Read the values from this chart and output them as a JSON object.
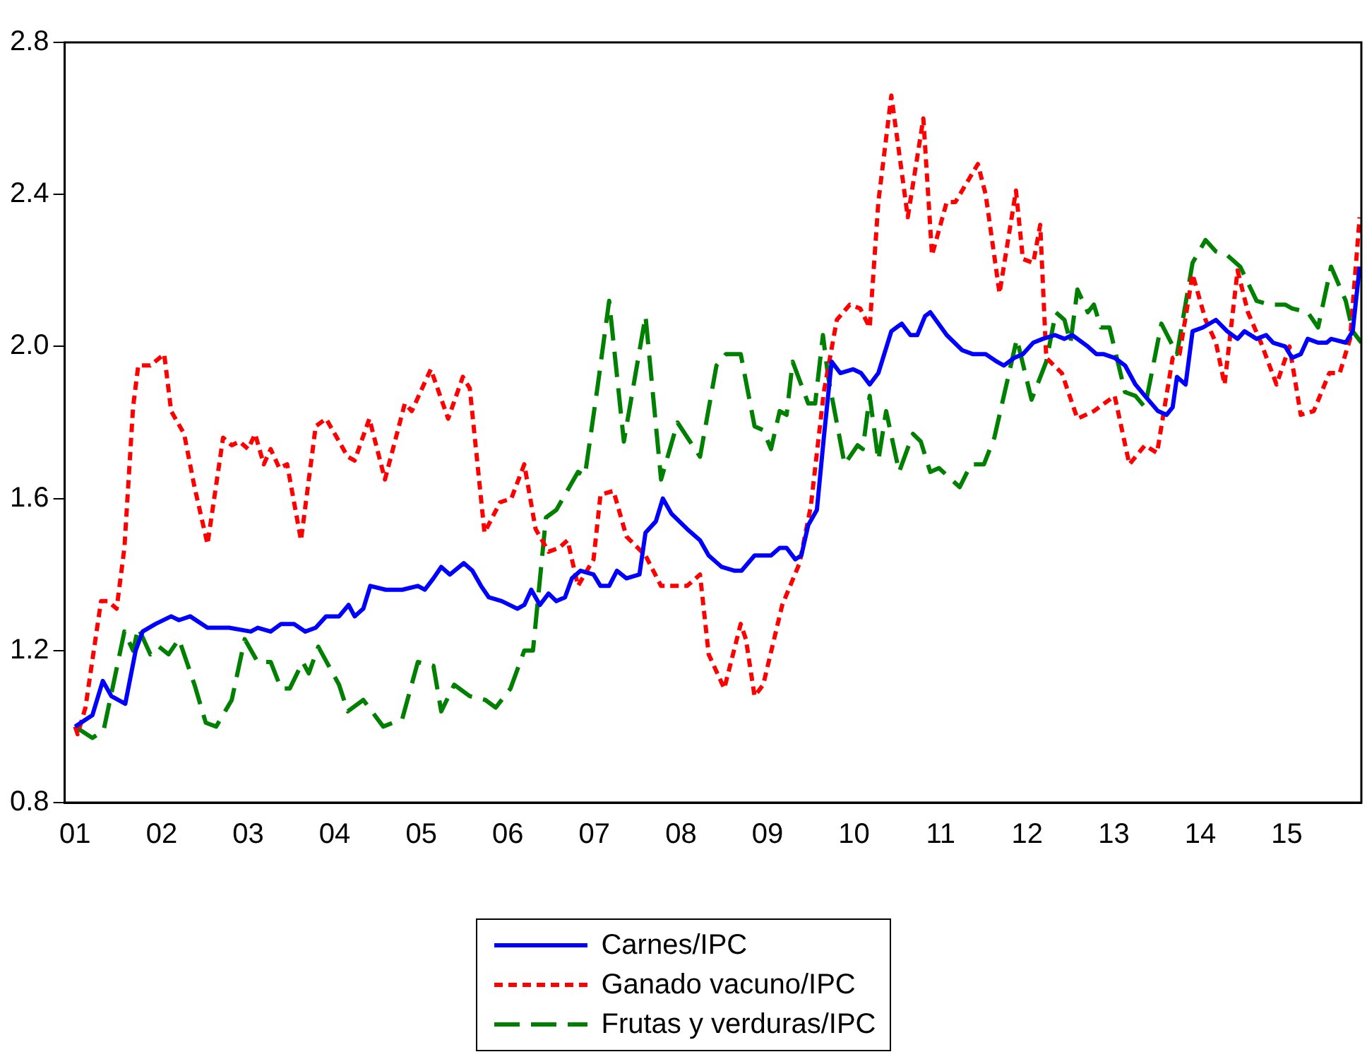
{
  "chart_data": {
    "type": "line",
    "xlim": [
      2000.88,
      2015.86
    ],
    "ylim": [
      0.8,
      2.8
    ],
    "xticks": [
      {
        "value": 2001,
        "label": "01"
      },
      {
        "value": 2002,
        "label": "02"
      },
      {
        "value": 2003,
        "label": "03"
      },
      {
        "value": 2004,
        "label": "04"
      },
      {
        "value": 2005,
        "label": "05"
      },
      {
        "value": 2006,
        "label": "06"
      },
      {
        "value": 2007,
        "label": "07"
      },
      {
        "value": 2008,
        "label": "08"
      },
      {
        "value": 2009,
        "label": "09"
      },
      {
        "value": 2010,
        "label": "10"
      },
      {
        "value": 2011,
        "label": "11"
      },
      {
        "value": 2012,
        "label": "12"
      },
      {
        "value": 2013,
        "label": "13"
      },
      {
        "value": 2014,
        "label": "14"
      },
      {
        "value": 2015,
        "label": "15"
      }
    ],
    "yticks": [
      {
        "value": 0.8,
        "label": "0.8"
      },
      {
        "value": 1.2,
        "label": "1.2"
      },
      {
        "value": 1.6,
        "label": "1.6"
      },
      {
        "value": 2.0,
        "label": "2.0"
      },
      {
        "value": 2.4,
        "label": "2.4"
      },
      {
        "value": 2.8,
        "label": "2.8"
      }
    ],
    "grid": false,
    "legend": "bottom",
    "marker": "none",
    "series": [
      {
        "name": "Carnes/IPC",
        "color": "#0000ff",
        "line_style": "solid",
        "x": [
          2001.0,
          2001.2,
          2001.32,
          2001.42,
          2001.58,
          2001.7,
          2001.78,
          2001.93,
          2002.11,
          2002.2,
          2002.33,
          2002.53,
          2002.78,
          2003.03,
          2003.11,
          2003.26,
          2003.38,
          2003.53,
          2003.66,
          2003.78,
          2003.9,
          2004.05,
          2004.16,
          2004.23,
          2004.33,
          2004.41,
          2004.59,
          2004.78,
          2004.96,
          2005.04,
          2005.14,
          2005.23,
          2005.33,
          2005.49,
          2005.59,
          2005.69,
          2005.78,
          2005.93,
          2006.11,
          2006.19,
          2006.27,
          2006.37,
          2006.47,
          2006.56,
          2006.66,
          2006.74,
          2006.84,
          2006.99,
          2007.07,
          2007.17,
          2007.26,
          2007.37,
          2007.52,
          2007.59,
          2007.71,
          2007.79,
          2007.89,
          2008.07,
          2008.22,
          2008.32,
          2008.47,
          2008.62,
          2008.7,
          2008.85,
          2009.04,
          2009.14,
          2009.22,
          2009.32,
          2009.39,
          2009.47,
          2009.57,
          2009.65,
          2009.74,
          2009.84,
          2009.99,
          2010.08,
          2010.18,
          2010.28,
          2010.43,
          2010.55,
          2010.65,
          2010.73,
          2010.82,
          2010.88,
          2011.07,
          2011.25,
          2011.37,
          2011.52,
          2011.65,
          2011.73,
          2011.85,
          2011.95,
          2012.07,
          2012.18,
          2012.32,
          2012.43,
          2012.52,
          2012.7,
          2012.8,
          2012.88,
          2013.01,
          2013.13,
          2013.25,
          2013.36,
          2013.51,
          2013.61,
          2013.68,
          2013.73,
          2013.83,
          2013.91,
          2014.03,
          2014.18,
          2014.31,
          2014.43,
          2014.51,
          2014.65,
          2014.76,
          2014.84,
          2014.98,
          2015.06,
          2015.16,
          2015.24,
          2015.36,
          2015.46,
          2015.51,
          2015.68,
          2015.76,
          2015.84
        ],
        "values": [
          1.0,
          1.03,
          1.12,
          1.08,
          1.06,
          1.2,
          1.25,
          1.27,
          1.29,
          1.28,
          1.29,
          1.26,
          1.26,
          1.25,
          1.26,
          1.25,
          1.27,
          1.27,
          1.25,
          1.26,
          1.29,
          1.29,
          1.32,
          1.29,
          1.31,
          1.37,
          1.36,
          1.36,
          1.37,
          1.36,
          1.39,
          1.42,
          1.4,
          1.43,
          1.41,
          1.37,
          1.34,
          1.33,
          1.31,
          1.32,
          1.36,
          1.32,
          1.35,
          1.33,
          1.34,
          1.39,
          1.41,
          1.4,
          1.37,
          1.37,
          1.41,
          1.39,
          1.4,
          1.51,
          1.54,
          1.6,
          1.56,
          1.52,
          1.49,
          1.45,
          1.42,
          1.41,
          1.41,
          1.45,
          1.45,
          1.47,
          1.47,
          1.44,
          1.45,
          1.53,
          1.57,
          1.76,
          1.96,
          1.93,
          1.94,
          1.93,
          1.9,
          1.93,
          2.04,
          2.06,
          2.03,
          2.03,
          2.08,
          2.09,
          2.03,
          1.99,
          1.98,
          1.98,
          1.96,
          1.95,
          1.97,
          1.98,
          2.01,
          2.02,
          2.03,
          2.02,
          2.03,
          2.0,
          1.98,
          1.98,
          1.97,
          1.95,
          1.9,
          1.87,
          1.83,
          1.82,
          1.84,
          1.92,
          1.9,
          2.04,
          2.05,
          2.07,
          2.04,
          2.02,
          2.04,
          2.02,
          2.03,
          2.01,
          2.0,
          1.97,
          1.98,
          2.02,
          2.01,
          2.01,
          2.02,
          2.01,
          2.04,
          2.21
        ]
      },
      {
        "name": "Ganado vacuno/IPC",
        "color": "#ff0000",
        "line_style": "dotted",
        "x": [
          2001.0,
          2001.03,
          2001.12,
          2001.3,
          2001.38,
          2001.48,
          2001.57,
          2001.67,
          2001.73,
          2001.87,
          2002.03,
          2002.11,
          2002.26,
          2002.38,
          2002.53,
          2002.71,
          2002.81,
          2002.9,
          2003.0,
          2003.08,
          2003.18,
          2003.26,
          2003.36,
          2003.45,
          2003.61,
          2003.78,
          2003.9,
          2004.05,
          2004.15,
          2004.23,
          2004.4,
          2004.58,
          2004.81,
          2004.89,
          2005.11,
          2005.31,
          2005.48,
          2005.56,
          2005.73,
          2005.91,
          2006.04,
          2006.19,
          2006.32,
          2006.47,
          2006.59,
          2006.69,
          2006.81,
          2006.99,
          2007.07,
          2007.22,
          2007.37,
          2007.59,
          2007.77,
          2007.89,
          2008.07,
          2008.22,
          2008.32,
          2008.5,
          2008.69,
          2008.75,
          2008.85,
          2008.95,
          2009.17,
          2009.37,
          2009.5,
          2009.65,
          2009.8,
          2009.95,
          2010.07,
          2010.18,
          2010.28,
          2010.43,
          2010.52,
          2010.62,
          2010.8,
          2010.9,
          2011.07,
          2011.17,
          2011.43,
          2011.52,
          2011.68,
          2011.87,
          2011.95,
          2012.07,
          2012.15,
          2012.22,
          2012.4,
          2012.58,
          2012.77,
          2013.01,
          2013.18,
          2013.36,
          2013.5,
          2013.68,
          2013.76,
          2013.91,
          2014.06,
          2014.18,
          2014.28,
          2014.43,
          2014.55,
          2014.7,
          2014.88,
          2015.03,
          2015.16,
          2015.31,
          2015.49,
          2015.61,
          2015.73,
          2015.84
        ],
        "values": [
          1.0,
          0.98,
          1.05,
          1.33,
          1.33,
          1.31,
          1.47,
          1.84,
          1.95,
          1.95,
          1.98,
          1.83,
          1.77,
          1.63,
          1.48,
          1.76,
          1.74,
          1.75,
          1.73,
          1.77,
          1.69,
          1.73,
          1.68,
          1.69,
          1.49,
          1.79,
          1.81,
          1.75,
          1.71,
          1.7,
          1.81,
          1.65,
          1.85,
          1.83,
          1.94,
          1.81,
          1.92,
          1.89,
          1.51,
          1.59,
          1.6,
          1.69,
          1.52,
          1.46,
          1.47,
          1.49,
          1.37,
          1.44,
          1.61,
          1.62,
          1.5,
          1.45,
          1.37,
          1.37,
          1.37,
          1.4,
          1.19,
          1.1,
          1.27,
          1.23,
          1.08,
          1.11,
          1.32,
          1.43,
          1.58,
          1.88,
          2.07,
          2.11,
          2.1,
          2.05,
          2.38,
          2.66,
          2.51,
          2.34,
          2.6,
          2.24,
          2.38,
          2.38,
          2.48,
          2.4,
          2.14,
          2.41,
          2.23,
          2.22,
          2.32,
          1.97,
          1.93,
          1.81,
          1.83,
          1.87,
          1.69,
          1.74,
          1.72,
          1.97,
          1.98,
          2.19,
          2.07,
          2.01,
          1.9,
          2.2,
          2.09,
          2.01,
          1.9,
          2.0,
          1.82,
          1.83,
          1.93,
          1.93,
          2.02,
          2.34
        ]
      },
      {
        "name": "Frutas y verduras/IPC",
        "color": "#008000",
        "line_style": "dashed",
        "x": [
          2001.0,
          2001.2,
          2001.33,
          2001.57,
          2001.67,
          2001.73,
          2001.87,
          2001.97,
          2002.08,
          2002.2,
          2002.38,
          2002.51,
          2002.63,
          2002.81,
          2002.96,
          2003.11,
          2003.26,
          2003.38,
          2003.48,
          2003.63,
          2003.7,
          2003.81,
          2004.05,
          2004.15,
          2004.33,
          2004.56,
          2004.78,
          2004.96,
          2005.14,
          2005.23,
          2005.38,
          2005.56,
          2005.74,
          2005.86,
          2006.03,
          2006.19,
          2006.29,
          2006.44,
          2006.56,
          2006.81,
          2006.89,
          2007.04,
          2007.17,
          2007.34,
          2007.59,
          2007.77,
          2007.96,
          2008.22,
          2008.41,
          2008.52,
          2008.69,
          2008.85,
          2008.95,
          2009.04,
          2009.14,
          2009.22,
          2009.29,
          2009.47,
          2009.55,
          2009.64,
          2009.7,
          2009.89,
          2010.04,
          2010.1,
          2010.18,
          2010.28,
          2010.37,
          2010.52,
          2010.68,
          2010.77,
          2010.88,
          2010.98,
          2011.22,
          2011.35,
          2011.5,
          2011.62,
          2011.88,
          2012.05,
          2012.22,
          2012.33,
          2012.43,
          2012.5,
          2012.58,
          2012.7,
          2012.77,
          2012.85,
          2012.95,
          2013.13,
          2013.25,
          2013.36,
          2013.55,
          2013.73,
          2013.91,
          2014.06,
          2014.18,
          2014.31,
          2014.46,
          2014.65,
          2014.8,
          2014.98,
          2015.06,
          2015.24,
          2015.36,
          2015.51,
          2015.68,
          2015.76,
          2015.86
        ],
        "values": [
          1.0,
          0.97,
          0.99,
          1.25,
          1.2,
          1.26,
          1.19,
          1.21,
          1.19,
          1.23,
          1.11,
          1.01,
          1.0,
          1.07,
          1.23,
          1.17,
          1.17,
          1.1,
          1.1,
          1.17,
          1.14,
          1.21,
          1.11,
          1.04,
          1.07,
          1.0,
          1.02,
          1.17,
          1.16,
          1.04,
          1.11,
          1.08,
          1.07,
          1.05,
          1.1,
          1.2,
          1.2,
          1.55,
          1.57,
          1.67,
          1.66,
          1.9,
          2.12,
          1.75,
          2.08,
          1.65,
          1.8,
          1.71,
          1.95,
          1.98,
          1.98,
          1.79,
          1.78,
          1.73,
          1.83,
          1.82,
          1.96,
          1.85,
          1.85,
          2.03,
          1.92,
          1.69,
          1.74,
          1.73,
          1.87,
          1.7,
          1.83,
          1.67,
          1.77,
          1.75,
          1.67,
          1.68,
          1.63,
          1.69,
          1.69,
          1.76,
          2.02,
          1.86,
          1.96,
          2.09,
          2.07,
          2.01,
          2.15,
          2.09,
          2.11,
          2.05,
          2.05,
          1.88,
          1.87,
          1.84,
          2.06,
          1.98,
          2.22,
          2.28,
          2.25,
          2.24,
          2.21,
          2.12,
          2.11,
          2.11,
          2.1,
          2.09,
          2.05,
          2.21,
          2.12,
          2.04,
          2.01
        ]
      }
    ]
  }
}
